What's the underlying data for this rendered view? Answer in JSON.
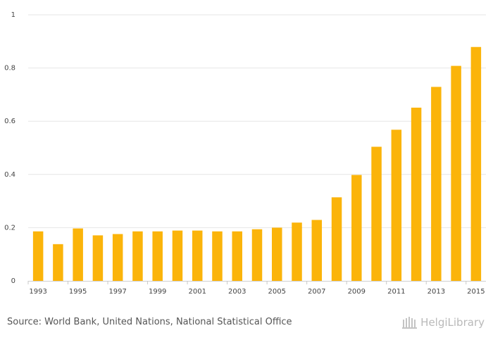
{
  "chart_data": {
    "type": "bar",
    "categories": [
      "1993",
      "1994",
      "1995",
      "1996",
      "1997",
      "1998",
      "1999",
      "2000",
      "2001",
      "2002",
      "2003",
      "2004",
      "2005",
      "2006",
      "2007",
      "2008",
      "2009",
      "2010",
      "2011",
      "2012",
      "2013",
      "2014",
      "2015"
    ],
    "x_tick_labels": [
      "1993",
      "",
      "1995",
      "",
      "1997",
      "",
      "1999",
      "",
      "2001",
      "",
      "2003",
      "",
      "2005",
      "",
      "2007",
      "",
      "2009",
      "",
      "2011",
      "",
      "2013",
      "",
      "2015"
    ],
    "values": [
      0.186,
      0.138,
      0.197,
      0.171,
      0.176,
      0.186,
      0.186,
      0.189,
      0.189,
      0.186,
      0.186,
      0.194,
      0.2,
      0.219,
      0.229,
      0.314,
      0.398,
      0.504,
      0.568,
      0.651,
      0.729,
      0.808,
      0.879
    ],
    "yticks": [
      "0",
      "0.2",
      "0.4",
      "0.6",
      "0.8",
      "1"
    ],
    "ylim": [
      0,
      1
    ],
    "bar_color": "#fbb40a",
    "title": "",
    "xlabel": "",
    "ylabel": ""
  },
  "footer": {
    "source": "Source: World Bank, United Nations, National Statistical Office",
    "brand": "HelgiLibrary"
  }
}
